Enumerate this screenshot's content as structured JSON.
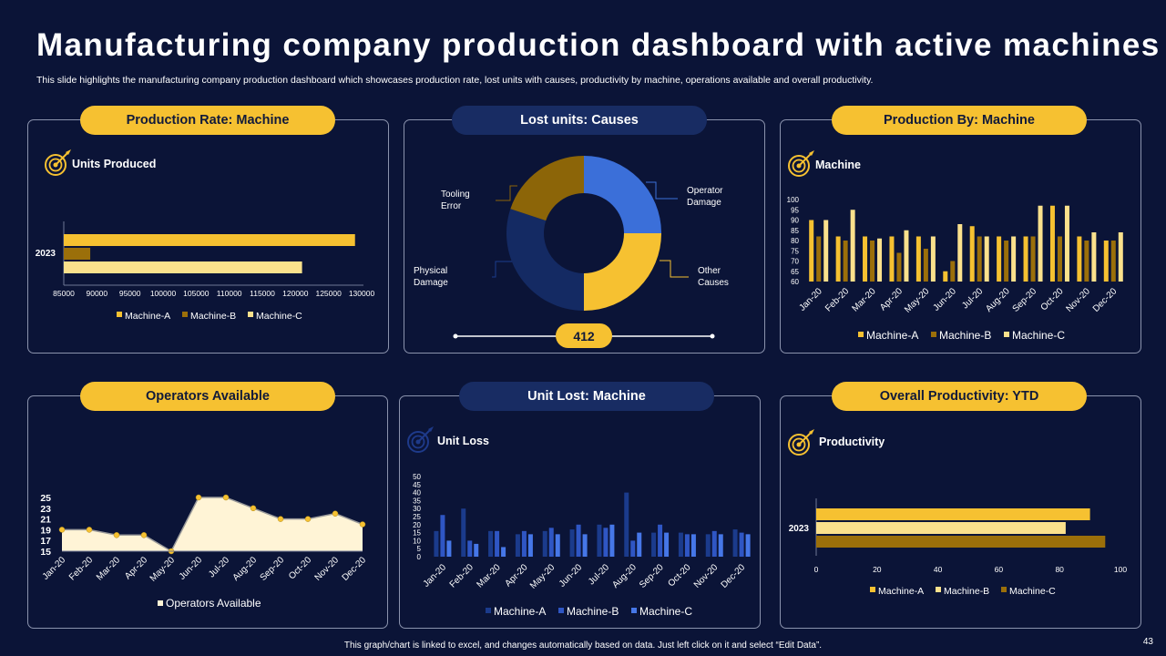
{
  "title": "Manufacturing company production dashboard with active machines",
  "subtitle": "This slide highlights the manufacturing company production dashboard which showcases production rate, lost units with causes, productivity by machine, operations available and overall productivity.",
  "footer": "This graph/chart is linked to excel, and changes automatically based on data. Just left click on it and select “Edit Data”.",
  "page_number": "43",
  "colors": {
    "background": "#0b1437",
    "gold": "#f6c131",
    "brown": "#9b6f0a",
    "cream": "#fbe18c",
    "navy_pill": "#182c63"
  },
  "panels": {
    "production_rate": {
      "header": "Production Rate: Machine",
      "label": "Units Produced"
    },
    "lost_units": {
      "header": "Lost units: Causes",
      "total": "412"
    },
    "production_by": {
      "header": "Production By: Machine",
      "label": "Machine"
    },
    "operators": {
      "header": "Operators Available"
    },
    "unit_lost": {
      "header": "Unit Lost: Machine",
      "label": "Unit Loss"
    },
    "overall": {
      "header": "Overall Productivity: YTD",
      "label": "Productivity"
    }
  },
  "chart_data": [
    {
      "id": "production_rate",
      "type": "bar",
      "orientation": "horizontal",
      "categories": [
        "2023"
      ],
      "series": [
        {
          "name": "Machine-A",
          "color": "#f6c131",
          "values": [
            129000
          ]
        },
        {
          "name": "Machine-B",
          "color": "#9b6f0a",
          "values": [
            89000
          ]
        },
        {
          "name": "Machine-C",
          "color": "#fbe18c",
          "values": [
            121000
          ]
        }
      ],
      "xlim": [
        85000,
        130000
      ],
      "xticks": [
        85000,
        90000,
        95000,
        100000,
        105000,
        110000,
        115000,
        120000,
        125000,
        130000
      ],
      "xtick_labels": [
        "85000",
        "90000",
        "95000",
        "100000",
        "105000",
        "110000",
        "115000",
        "120000",
        "125000",
        "130000"
      ],
      "legend": "bottom"
    },
    {
      "id": "lost_units",
      "type": "pie",
      "donut": true,
      "slices": [
        {
          "label": "Operator Damage",
          "display": [
            "Operator",
            "Damage"
          ],
          "value": 103,
          "color": "#3b6fd9"
        },
        {
          "label": "Other Causes",
          "display": [
            "Other",
            "Causes"
          ],
          "value": 103,
          "color": "#f6c131"
        },
        {
          "label": "Physical Damage",
          "display": [
            "Physical",
            "Damage"
          ],
          "value": 124,
          "color": "#142a63"
        },
        {
          "label": "Tooling Error",
          "display": [
            "Tooling",
            "Error"
          ],
          "value": 82,
          "color": "#8c6508"
        }
      ],
      "total": 412
    },
    {
      "id": "production_by",
      "type": "bar",
      "categories": [
        "Jan-20",
        "Feb-20",
        "Mar-20",
        "Apr-20",
        "May-20",
        "Jun-20",
        "Jul-20",
        "Aug-20",
        "Sep-20",
        "Oct-20",
        "Nov-20",
        "Dec-20"
      ],
      "series": [
        {
          "name": "Machine-A",
          "color": "#f6c131",
          "values": [
            90,
            82,
            82,
            82,
            82,
            65,
            87,
            82,
            82,
            97,
            82,
            80
          ]
        },
        {
          "name": "Machine-B",
          "color": "#9b6f0a",
          "values": [
            82,
            80,
            80,
            74,
            76,
            70,
            82,
            80,
            82,
            82,
            80,
            80
          ]
        },
        {
          "name": "Machine-C",
          "color": "#fbe18c",
          "values": [
            90,
            95,
            81,
            85,
            82,
            88,
            82,
            82,
            97,
            97,
            84,
            84
          ]
        }
      ],
      "ylim": [
        60,
        100
      ],
      "yticks": [
        60,
        65,
        70,
        75,
        80,
        85,
        90,
        95,
        100
      ],
      "legend": "bottom"
    },
    {
      "id": "operators",
      "type": "area",
      "categories": [
        "Jan-20",
        "Feb-20",
        "Mar-20",
        "Apr-20",
        "May-20",
        "Jun-20",
        "Jul-20",
        "Aug-20",
        "Sep-20",
        "Oct-20",
        "Nov-20",
        "Dec-20"
      ],
      "series": [
        {
          "name": "Operators Available",
          "color": "#fff4d6",
          "values": [
            19,
            19,
            18,
            18,
            15,
            25,
            25,
            23,
            21,
            21,
            22,
            20
          ]
        }
      ],
      "ylim": [
        15,
        25
      ],
      "yticks": [
        15,
        17,
        19,
        21,
        23,
        25
      ],
      "legend": "bottom"
    },
    {
      "id": "unit_lost",
      "type": "bar",
      "categories": [
        "Jan-20",
        "Feb-20",
        "Mar-20",
        "Apr-20",
        "May-20",
        "Jun-20",
        "Jul-20",
        "Aug-20",
        "Sep-20",
        "Oct-20",
        "Nov-20",
        "Dec-20"
      ],
      "series": [
        {
          "name": "Machine-A",
          "color": "#1b3b8c",
          "values": [
            16,
            30,
            16,
            14,
            16,
            17,
            20,
            40,
            15,
            15,
            14,
            17
          ]
        },
        {
          "name": "Machine-B",
          "color": "#2f56c4",
          "values": [
            26,
            10,
            16,
            16,
            18,
            20,
            18,
            10,
            20,
            14,
            16,
            15
          ]
        },
        {
          "name": "Machine-C",
          "color": "#4677e8",
          "values": [
            10,
            8,
            6,
            14,
            14,
            14,
            20,
            15,
            15,
            14,
            14,
            14
          ]
        }
      ],
      "ylim": [
        0,
        50
      ],
      "yticks": [
        0,
        5,
        10,
        15,
        20,
        25,
        30,
        35,
        40,
        45,
        50
      ],
      "legend": "bottom"
    },
    {
      "id": "overall",
      "type": "bar",
      "orientation": "horizontal",
      "categories": [
        "2023"
      ],
      "series": [
        {
          "name": "Machine-A",
          "color": "#f6c131",
          "values": [
            90
          ]
        },
        {
          "name": "Machine-B",
          "color": "#fbe18c",
          "values": [
            82
          ]
        },
        {
          "name": "Machine-C",
          "color": "#9b6f0a",
          "values": [
            95
          ]
        }
      ],
      "xlim": [
        0,
        100
      ],
      "xticks": [
        0,
        20,
        40,
        60,
        80,
        100
      ],
      "legend": "bottom"
    }
  ]
}
